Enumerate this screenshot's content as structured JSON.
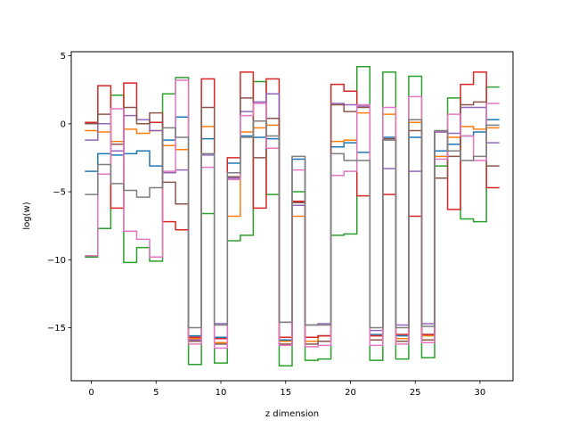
{
  "chart_data": {
    "type": "line",
    "style": "step",
    "xlabel": "z dimension",
    "ylabel": "log(w)",
    "xlim": [
      -1.55,
      32.55
    ],
    "ylim": [
      -18.9,
      5.3
    ],
    "xticks": [
      0,
      5,
      10,
      15,
      20,
      25,
      30
    ],
    "yticks": [
      -15,
      -10,
      -5,
      0,
      5
    ],
    "grid": false,
    "x": [
      0,
      1,
      2,
      3,
      4,
      5,
      6,
      7,
      8,
      9,
      10,
      11,
      12,
      13,
      14,
      15,
      16,
      17,
      18,
      19,
      20,
      21,
      22,
      23,
      24,
      25,
      26,
      27,
      28,
      29,
      30,
      31
    ],
    "series": [
      {
        "color": "#1f77b4",
        "values": [
          -3.5,
          -2.2,
          -2.3,
          -2.2,
          -2.0,
          -3.1,
          -1.2,
          0.5,
          -15.6,
          -1.1,
          -15.7,
          -2.9,
          -0.9,
          -1.0,
          -1.1,
          -15.9,
          -2.6,
          -16.0,
          -15.6,
          -1.7,
          -1.4,
          -2.1,
          -15.5,
          -1.0,
          -15.6,
          -1.0,
          -15.5,
          -2.0,
          -1.5,
          -0.9,
          -0.6,
          0.3
        ]
      },
      {
        "color": "#ff7f0e",
        "values": [
          -0.5,
          -0.6,
          -1.3,
          -0.4,
          -0.7,
          -0.5,
          -1.6,
          -1.9,
          -15.8,
          -0.2,
          -16.1,
          -6.8,
          -0.6,
          -0.3,
          -0.1,
          -16.0,
          -6.8,
          -16.0,
          -15.6,
          -1.3,
          -1.2,
          0.8,
          -15.6,
          0.7,
          -15.8,
          0.1,
          -15.6,
          -2.4,
          -1.0,
          -0.2,
          -0.4,
          -0.3
        ]
      },
      {
        "color": "#2ca02c",
        "values": [
          -9.8,
          -7.7,
          2.1,
          -10.2,
          -9.1,
          -10.1,
          2.2,
          3.4,
          -17.7,
          -6.6,
          -17.6,
          -8.6,
          -8.2,
          3.1,
          -5.2,
          -17.8,
          -5.0,
          -17.4,
          -17.3,
          -8.2,
          -8.1,
          4.2,
          -17.4,
          3.8,
          -17.3,
          3.5,
          -17.2,
          -3.1,
          1.9,
          -7.0,
          -7.2,
          2.7
        ]
      },
      {
        "color": "#d62728",
        "values": [
          0.1,
          2.8,
          -6.2,
          3.0,
          0.3,
          0.1,
          -7.2,
          -7.8,
          -15.7,
          3.3,
          -15.8,
          -2.5,
          3.8,
          -6.2,
          3.3,
          -15.7,
          -5.7,
          -15.7,
          -15.6,
          2.9,
          2.4,
          -5.3,
          -15.6,
          -5.2,
          -15.5,
          -6.8,
          -15.5,
          -0.6,
          -6.3,
          2.9,
          3.8,
          -4.7
        ]
      },
      {
        "color": "#9467bd",
        "values": [
          -1.2,
          0.0,
          -2.0,
          0.6,
          0.3,
          -0.5,
          -3.6,
          -3.4,
          -15.9,
          -2.3,
          -14.7,
          -4.0,
          0.9,
          1.6,
          2.2,
          -14.6,
          -6.0,
          -14.8,
          -14.7,
          1.5,
          1.4,
          1.3,
          -15.2,
          -3.3,
          -14.8,
          -3.5,
          -14.7,
          -0.6,
          -0.7,
          1.2,
          1.2,
          -1.4
        ]
      },
      {
        "color": "#8c564b",
        "values": [
          0.0,
          0.7,
          -1.5,
          1.2,
          0.0,
          0.8,
          -4.3,
          -5.9,
          -16.0,
          1.2,
          -16.2,
          -3.9,
          1.9,
          -2.5,
          0.4,
          -16.2,
          -5.8,
          -16.2,
          -16.0,
          1.4,
          0.9,
          1.2,
          -15.9,
          -1.1,
          -16.0,
          -0.5,
          -15.9,
          -4.0,
          -2.4,
          1.4,
          1.6,
          -3.1
        ]
      },
      {
        "color": "#e377c2",
        "values": [
          -9.7,
          -3.7,
          1.1,
          -7.9,
          -8.5,
          -9.8,
          -3.5,
          3.2,
          -16.2,
          -3.2,
          -16.5,
          -4.1,
          0.6,
          1.5,
          -1.8,
          -16.3,
          -3.4,
          -16.4,
          -16.3,
          -3.8,
          -3.5,
          1.4,
          -16.3,
          1.2,
          -16.2,
          2.0,
          -16.1,
          -2.6,
          0.7,
          -0.9,
          -2.7,
          1.5
        ]
      },
      {
        "color": "#7f7f7f",
        "values": [
          -5.2,
          -3.0,
          -4.4,
          -4.9,
          -5.4,
          -4.7,
          -0.3,
          -1.0,
          -15.0,
          -2.2,
          -14.8,
          -3.6,
          -1.0,
          0.2,
          -0.9,
          -14.6,
          -2.4,
          -14.8,
          -14.8,
          -2.2,
          -2.7,
          -2.7,
          -15.0,
          -1.2,
          -15.0,
          0.3,
          -14.9,
          -0.5,
          -2.0,
          -2.7,
          -2.4,
          -0.1
        ]
      }
    ]
  }
}
